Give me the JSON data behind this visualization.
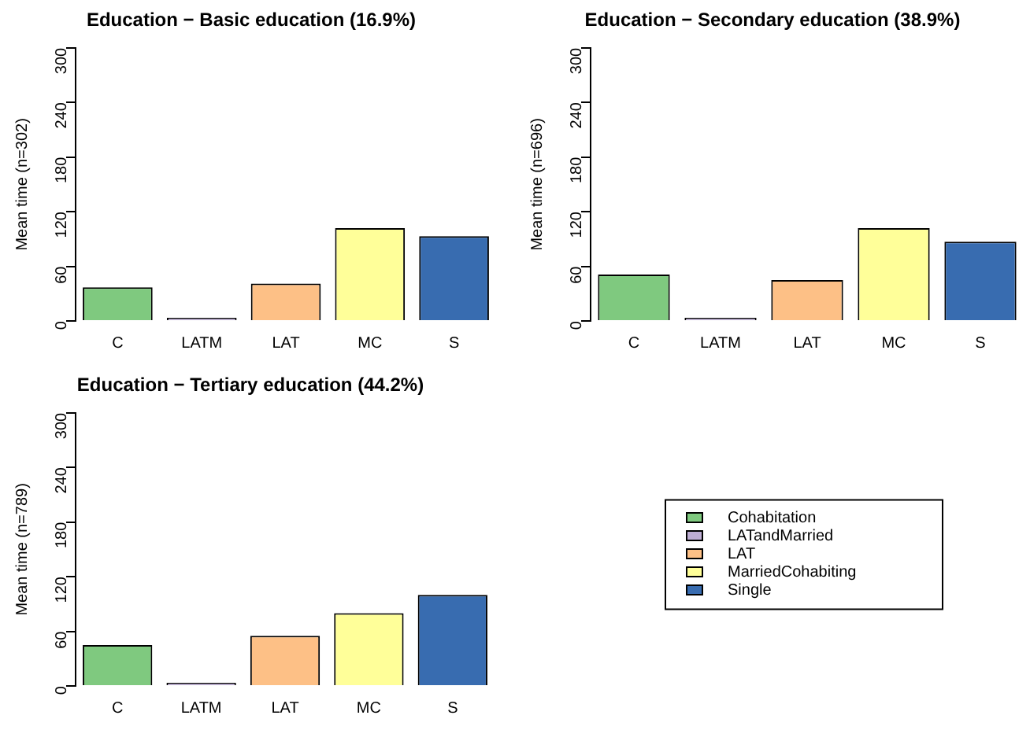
{
  "chart_data": [
    {
      "type": "bar",
      "title": "Education − Basic education (16.9%)",
      "ylabel": "Mean time (n=302)",
      "categories": [
        "C",
        "LATM",
        "LAT",
        "MC",
        "S"
      ],
      "values": [
        37,
        1,
        41,
        102,
        93
      ],
      "colors": [
        "#7fc97f",
        "#beaed4",
        "#fdc086",
        "#ffff99",
        "#386cb0"
      ],
      "ylim": [
        0,
        300
      ],
      "yticks": [
        0,
        60,
        120,
        180,
        240,
        300
      ],
      "grid": false
    },
    {
      "type": "bar",
      "title": "Education − Secondary education (38.9%)",
      "ylabel": "Mean time (n=696)",
      "categories": [
        "C",
        "LATM",
        "LAT",
        "MC",
        "S"
      ],
      "values": [
        51,
        1,
        45,
        102,
        87
      ],
      "colors": [
        "#7fc97f",
        "#beaed4",
        "#fdc086",
        "#ffff99",
        "#386cb0"
      ],
      "ylim": [
        0,
        300
      ],
      "yticks": [
        0,
        60,
        120,
        180,
        240,
        300
      ],
      "grid": false
    },
    {
      "type": "bar",
      "title": "Education − Tertiary education (44.2%)",
      "ylabel": "Mean time (n=789)",
      "categories": [
        "C",
        "LATM",
        "LAT",
        "MC",
        "S"
      ],
      "stacked": true,
      "legend": "right",
      "ylim": [
        0,
        300
      ],
      "yticks": [
        0,
        60,
        120,
        180,
        240,
        300
      ],
      "grid": false,
      "series": [
        {
          "name": "Cohabitation",
          "color": "#7fc97f",
          "values": [
            45,
            null,
            null,
            null,
            null
          ]
        },
        {
          "name": "LATandMarried",
          "color": "#beaed4",
          "values": [
            null,
            1,
            null,
            null,
            null
          ]
        },
        {
          "name": "LAT",
          "color": "#fdc086",
          "values": [
            null,
            null,
            55,
            null,
            null
          ]
        },
        {
          "name": "MarriedCohabiting",
          "color": "#ffff99",
          "values": [
            null,
            null,
            null,
            80,
            null
          ]
        },
        {
          "name": "Single",
          "color": "#386cb0",
          "values": [
            null,
            null,
            null,
            null,
            100
          ]
        }
      ]
    }
  ]
}
